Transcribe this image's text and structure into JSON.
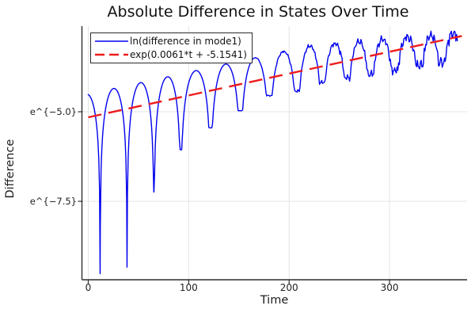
{
  "chart_data": {
    "type": "line",
    "title": "Absolute Difference in States Over Time",
    "xlabel": "Time",
    "ylabel": "Difference",
    "grid": true,
    "legend_position": "top-left",
    "x_axis": {
      "lim": [
        -6.3,
        377.2
      ],
      "ticks": [
        {
          "value": 0,
          "label": "0"
        },
        {
          "value": 100,
          "label": "100"
        },
        {
          "value": 200,
          "label": "200"
        },
        {
          "value": 300,
          "label": "300"
        }
      ]
    },
    "y_axis": {
      "scale": "natural-log",
      "lim": [
        -9.69,
        -2.61
      ],
      "ticks": [
        {
          "value": -5.0,
          "label": "e^{−5.0}"
        },
        {
          "value": -7.5,
          "label": "e^{−7.5}"
        }
      ]
    },
    "palette": {
      "blue_series": "#0202ee",
      "red_series": "#ee1c1c",
      "grid": "#e4e4e4",
      "axis": "#2f2f2f",
      "text": "#1c1c1c"
    },
    "series": [
      {
        "name": "ln(difference in mode1)",
        "color": "#0202ee",
        "style": "solid",
        "width": 1.4,
        "t_range": [
          0,
          368
        ],
        "model": {
          "kind": "log-abs-of-growing-oscillation",
          "trend": {
            "slope": 0.0061,
            "intercept": -5.1541
          },
          "peak_offset": {
            "base": 0.65,
            "taper_start_t": 220,
            "taper_end_t": 370,
            "end_value": 0.12
          },
          "virtual_first_cusp": {
            "t": -15.0,
            "floor": -9.5
          },
          "cusps": [
            {
              "t": 11.8,
              "floor": -9.52
            },
            {
              "t": 38.6,
              "floor": -9.34
            },
            {
              "t": 65.4,
              "floor": -7.24
            },
            {
              "t": 92.1,
              "floor": -6.06
            },
            {
              "t": 121.8,
              "floor": -5.45
            },
            {
              "t": 151.4,
              "floor": -4.97
            },
            {
              "t": 180.3,
              "floor": -4.55
            },
            {
              "t": 208.0,
              "floor": -4.42
            },
            {
              "t": 233.0,
              "floor": -4.18
            },
            {
              "t": 258.0,
              "floor": -4.05
            },
            {
              "t": 281.0,
              "floor": -3.95
            },
            {
              "t": 305.0,
              "floor": -3.85
            },
            {
              "t": 330.0,
              "floor": -3.7
            },
            {
              "t": 352.0,
              "floor": -3.62
            },
            {
              "t": 374.0,
              "floor": -3.45
            }
          ],
          "noise": {
            "start_t": 160,
            "full_t": 375,
            "max_amp": 0.23,
            "components": [
              [
                0.5,
                1.9,
                0.5
              ],
              [
                0.3,
                3.7,
                1.9
              ],
              [
                0.2,
                7.1,
                4.0
              ],
              [
                0.15,
                12.3,
                2.6
              ]
            ]
          },
          "clamp_v": [
            -9.6,
            -2.75
          ],
          "sample_dt": 0.75
        }
      },
      {
        "name": "exp(0.0061*t + -5.1541)",
        "color": "#ee1c1c",
        "style": "dashed",
        "width": 2.4,
        "dash": [
          17,
          9
        ],
        "t_range": [
          0,
          372
        ],
        "fit": {
          "slope": 0.0061,
          "intercept": -5.1541
        }
      }
    ]
  }
}
